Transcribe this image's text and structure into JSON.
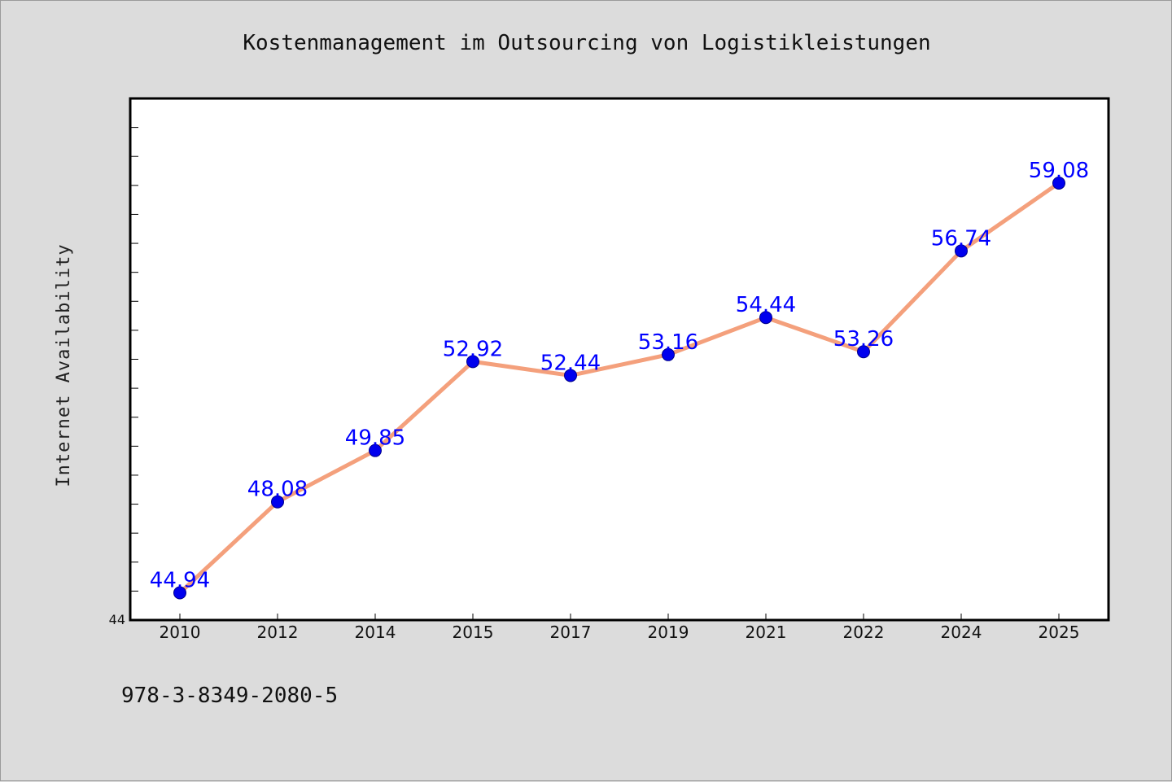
{
  "chart_data": {
    "type": "line",
    "title": "Kostenmanagement im Outsourcing von Logistikleistungen",
    "xlabel": "",
    "ylabel": "Internet Availability",
    "categories": [
      "2010",
      "2012",
      "2014",
      "2015",
      "2017",
      "2019",
      "2021",
      "2022",
      "2024",
      "2025"
    ],
    "series": [
      {
        "values": [
          44.94,
          48.08,
          49.85,
          52.92,
          52.44,
          53.16,
          54.44,
          53.26,
          56.74,
          59.08
        ],
        "labels": [
          "44.94",
          "48.08",
          "49.85",
          "52.92",
          "52.44",
          "53.16",
          "54.44",
          "53.26",
          "56.74",
          "59.08"
        ]
      }
    ],
    "ylim": [
      44,
      62
    ],
    "y_tick_labels": [
      "44"
    ],
    "grid": false,
    "colors": {
      "line": "#f4a07c",
      "marker": "#0000ee",
      "label": "#0000ff",
      "plot_bg": "#ffffff",
      "page_bg": "#dcdcdc"
    }
  },
  "footer": {
    "isbn": "978-3-8349-2080-5"
  }
}
